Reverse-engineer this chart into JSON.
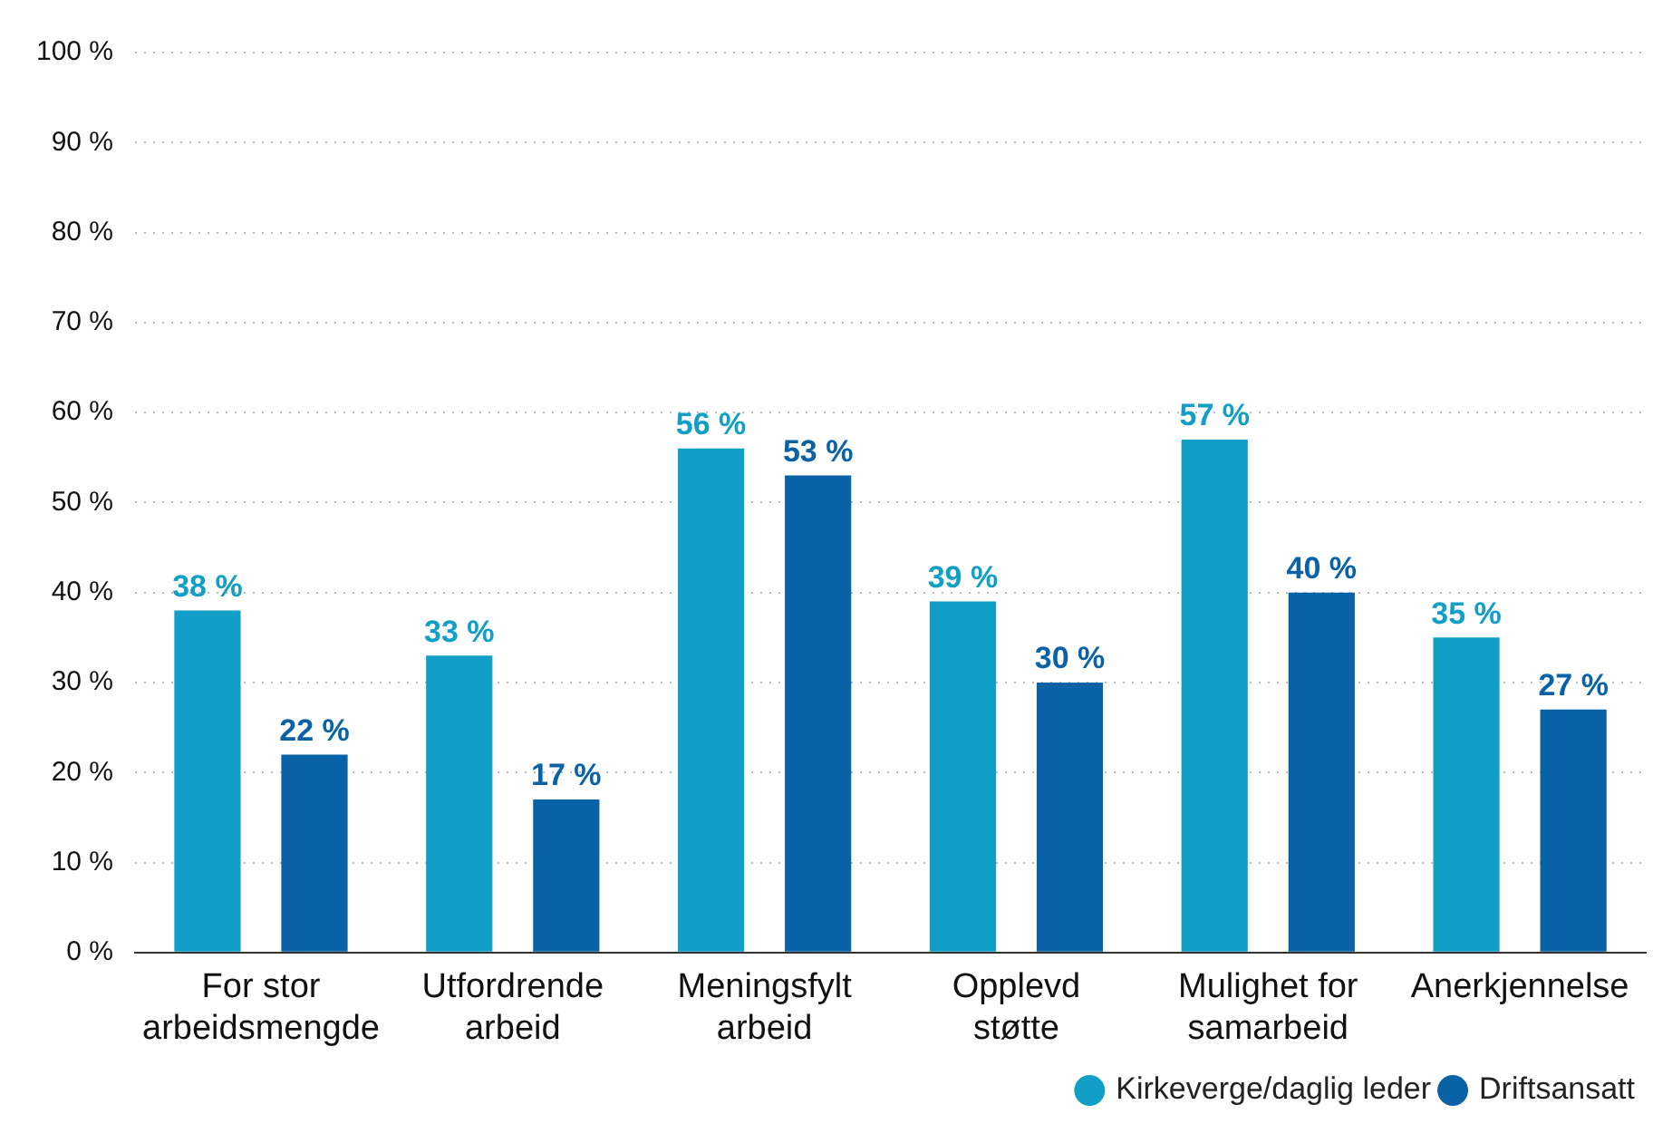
{
  "chart_data": {
    "type": "bar",
    "categories": [
      "For stor arbeidsmengde",
      "Utfordrende arbeid",
      "Meningsfylt arbeid",
      "Opplevd støtte",
      "Mulighet for samarbeid",
      "Anerkjennelse"
    ],
    "series": [
      {
        "name": "Kirkeverge/daglig leder",
        "color": "#119fc8",
        "values": [
          38,
          33,
          56,
          39,
          57,
          35
        ],
        "value_labels": [
          "38 %",
          "33 %",
          "56 %",
          "39 %",
          "57 %",
          "35 %"
        ]
      },
      {
        "name": "Driftsansatt",
        "color": "#0a62a6",
        "values": [
          22,
          17,
          53,
          30,
          40,
          27
        ],
        "value_labels": [
          "22 %",
          "17 %",
          "53 %",
          "30 %",
          "40 %",
          "27 %"
        ]
      }
    ],
    "ylim": [
      0,
      100
    ],
    "yticks": [
      {
        "value": 0,
        "label": "0 %"
      },
      {
        "value": 10,
        "label": "10 %"
      },
      {
        "value": 20,
        "label": "20 %"
      },
      {
        "value": 30,
        "label": "30 %"
      },
      {
        "value": 40,
        "label": "40 %"
      },
      {
        "value": 50,
        "label": "50 %"
      },
      {
        "value": 60,
        "label": "60 %"
      },
      {
        "value": 70,
        "label": "70 %"
      },
      {
        "value": 80,
        "label": "80 %"
      },
      {
        "value": 90,
        "label": "90 %"
      },
      {
        "value": 100,
        "label": "100 %"
      }
    ],
    "grid": "y",
    "legend": "bottom right",
    "marker": "circle"
  }
}
